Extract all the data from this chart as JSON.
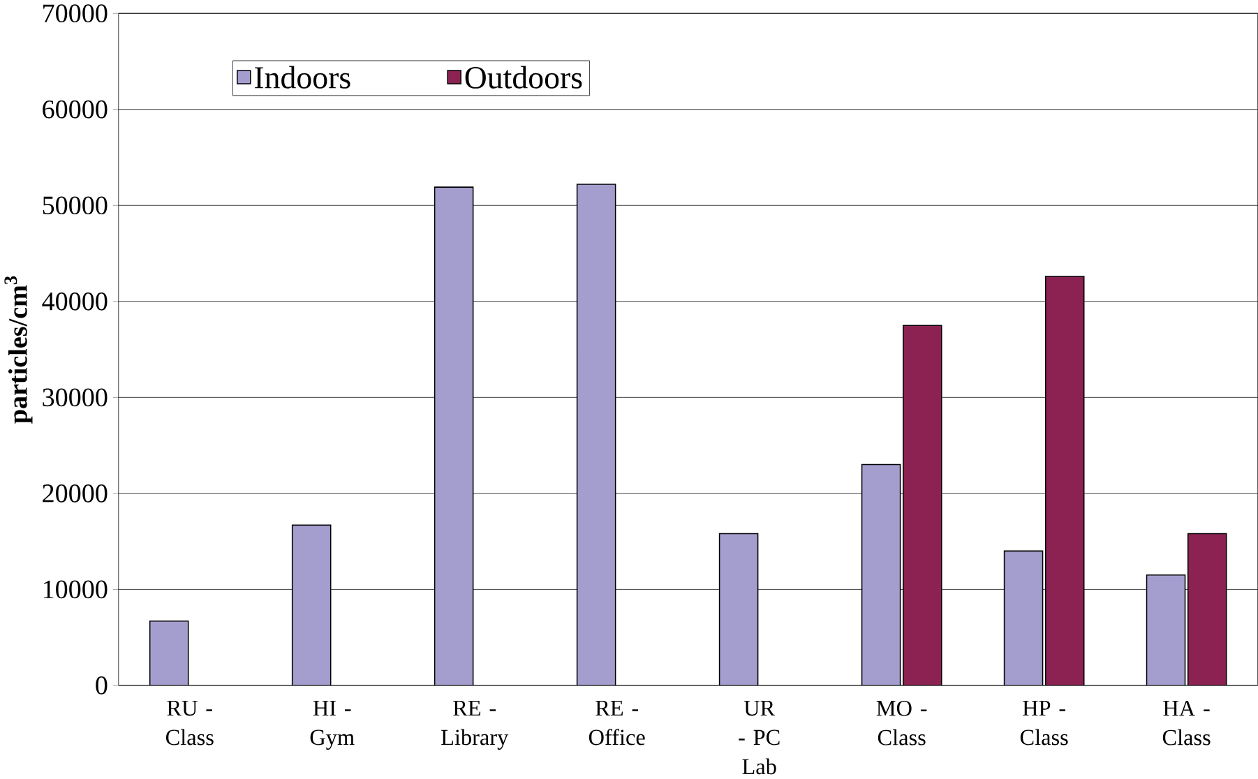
{
  "chart_data": {
    "type": "bar",
    "ylabel": "**particles/cm$^{3}$**",
    "categories": [
      "RU - Class",
      "HI - Gym",
      "RE - Library",
      "RE - Office",
      "UR - PC Lab",
      "MO - Class",
      "HP - Class",
      "HA - Class"
    ],
    "series": [
      {
        "name": "Indoors",
        "color": "#a49ecf",
        "values": [
          6700,
          16700,
          51900,
          52200,
          15800,
          23000,
          14000,
          11500
        ]
      },
      {
        "name": "Outdoors",
        "color": "#8b2252",
        "values": [
          null,
          null,
          null,
          null,
          null,
          37500,
          42600,
          15800
        ]
      }
    ],
    "ylim": [
      0,
      70000
    ],
    "yticks": [
      0,
      10000,
      20000,
      30000,
      40000,
      50000,
      60000,
      70000
    ],
    "grid": "y",
    "legend": "top"
  }
}
